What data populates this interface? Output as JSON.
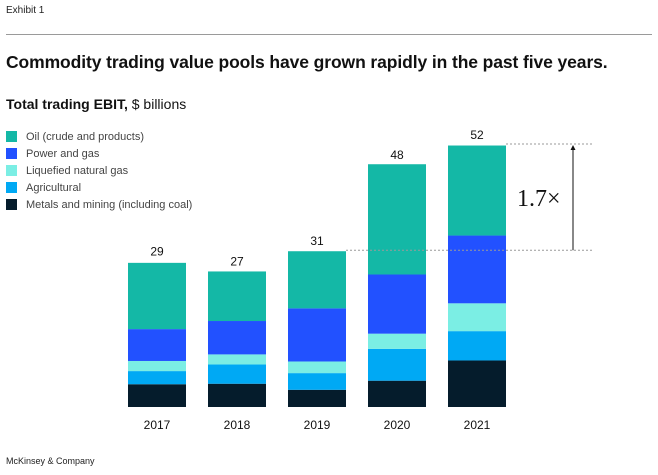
{
  "header": {
    "exhibit": "Exhibit 1",
    "headline": "Commodity trading value pools have grown rapidly in the past five years."
  },
  "footer": {
    "source": "McKinsey & Company"
  },
  "colors": {
    "oil": "#14b8a6",
    "power": "#2251ff",
    "lng": "#7beee4",
    "agri": "#00a9f4",
    "metals": "#051c2c"
  },
  "chart_data": {
    "type": "bar",
    "stacked": true,
    "title": "Total trading EBIT,",
    "unit": "$ billions",
    "categories": [
      "2017",
      "2018",
      "2019",
      "2020",
      "2021"
    ],
    "totals": [
      29,
      27,
      31,
      48,
      52
    ],
    "series": [
      {
        "key": "metals",
        "name": "Metals and mining (including coal)",
        "values": [
          4.5,
          4.6,
          3.4,
          5.2,
          9.2
        ]
      },
      {
        "key": "agri",
        "name": "Agricultural",
        "values": [
          2.6,
          3.8,
          3.3,
          6.3,
          5.8
        ]
      },
      {
        "key": "lng",
        "name": "Liquefied natural gas",
        "values": [
          2.0,
          2.0,
          2.3,
          3.0,
          5.5
        ]
      },
      {
        "key": "power",
        "name": "Power and gas",
        "values": [
          6.3,
          6.6,
          10.5,
          11.7,
          13.4
        ]
      },
      {
        "key": "oil",
        "name": "Oil (crude and products)",
        "values": [
          13.1,
          9.8,
          11.3,
          21.8,
          17.8
        ]
      }
    ],
    "legend_order": [
      "oil",
      "power",
      "lng",
      "agri",
      "metals"
    ],
    "ylim": [
      0,
      52
    ],
    "annotation": {
      "text": "1.7×",
      "from_category": "2019",
      "to_category": "2021"
    }
  }
}
